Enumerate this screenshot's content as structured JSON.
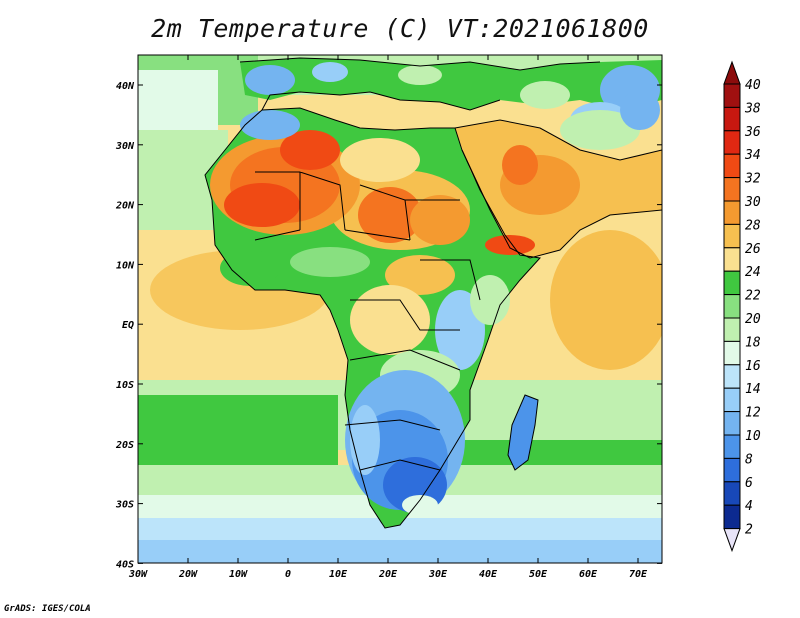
{
  "title": "2m Temperature (C) VT:2021061800",
  "credit": "GrADS: IGES/COLA",
  "map": {
    "lon_ticks": [
      "30W",
      "20W",
      "10W",
      "0",
      "10E",
      "20E",
      "30E",
      "40E",
      "50E",
      "60E",
      "70E"
    ],
    "lat_ticks": [
      "40N",
      "30N",
      "20N",
      "10N",
      "EQ",
      "10S",
      "20S",
      "30S",
      "40S"
    ],
    "lon_range": [
      -30,
      75
    ],
    "lat_range": [
      -40,
      45
    ]
  },
  "legend": {
    "labels": [
      "40",
      "38",
      "36",
      "34",
      "32",
      "30",
      "28",
      "26",
      "24",
      "22",
      "20",
      "18",
      "16",
      "14",
      "12",
      "10",
      "8",
      "6",
      "4",
      "2"
    ],
    "colors": [
      "#a01010",
      "#c81810",
      "#e02812",
      "#f04a14",
      "#f47420",
      "#f49a30",
      "#f6c050",
      "#fae090",
      "#40c840",
      "#88e080",
      "#c0f0b0",
      "#e2fae8",
      "#bce4fa",
      "#98cef8",
      "#74b4f0",
      "#4c94ea",
      "#2e6edc",
      "#1848b8",
      "#0c2a90"
    ],
    "top_arrow_color": "#8c0c0c",
    "bottom_arrow_color": "#e8e4f8"
  }
}
